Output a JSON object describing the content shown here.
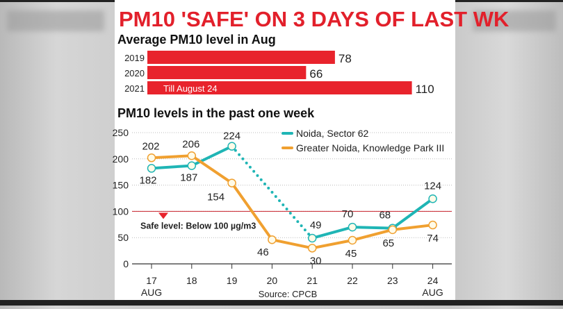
{
  "title": "PM10 'SAFE' ON 3 DAYS OF LAST WK",
  "colors": {
    "title": "#e2202b",
    "bar": "#e8232c",
    "noida": "#1fb5b5",
    "greater_noida": "#f0a030",
    "safe_line": "#c8202a"
  },
  "chart_data": [
    {
      "type": "bar",
      "orientation": "horizontal",
      "title": "Average PM10 level in Aug",
      "categories": [
        "2019",
        "2020",
        "2021"
      ],
      "values": [
        78,
        66,
        110
      ],
      "data_labels": [
        "78",
        "66",
        "110"
      ],
      "annotations": [
        "Till August 24"
      ]
    },
    {
      "type": "line",
      "title": "PM10 levels in the past one week",
      "categories": [
        "17",
        "18",
        "19",
        "20",
        "21",
        "22",
        "23",
        "24"
      ],
      "category_sublabels": [
        "AUG",
        "",
        "",
        "",
        "",
        "",
        "",
        "AUG"
      ],
      "ylim": [
        0,
        250
      ],
      "yticks": [
        "0",
        "50",
        "100",
        "150",
        "200",
        "250"
      ],
      "grid": true,
      "legend": "top-right",
      "series": [
        {
          "name": "Noida, Sector 62",
          "values": [
            182,
            187,
            224,
            null,
            49,
            70,
            68,
            124
          ],
          "gap": "dotted"
        },
        {
          "name": "Greater Noida, Knowledge Park III",
          "values": [
            202,
            206,
            154,
            46,
            30,
            45,
            65,
            74
          ]
        }
      ],
      "reference_line": {
        "value": 100,
        "label": "Safe level: Below 100 µg/m3"
      },
      "source": "Source: CPCB"
    }
  ]
}
